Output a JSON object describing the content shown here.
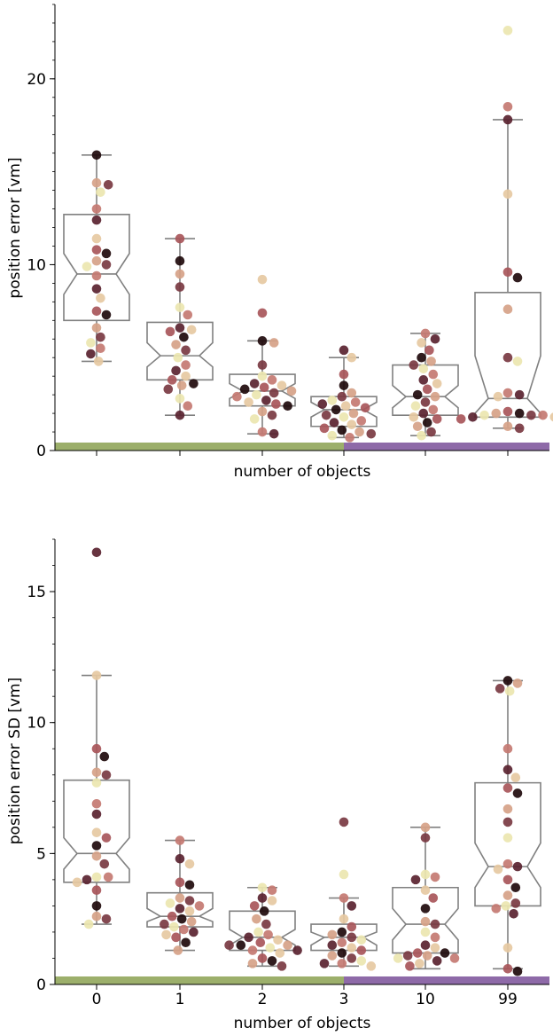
{
  "colors": {
    "box_stroke": "#808080",
    "axis": "#000000",
    "band_left": "#9caf6b",
    "band_right": "#8e6aa8",
    "palette": [
      "#1f0a0c",
      "#5a2330",
      "#7a3a42",
      "#a8565a",
      "#c47a72",
      "#d6a288",
      "#e6c9a2",
      "#ece6b0"
    ]
  },
  "chart_data": [
    {
      "type": "boxplot",
      "notched": true,
      "show_points": true,
      "title": "",
      "xlabel": "number of objects",
      "ylabel": "position error [vm]",
      "ylim": [
        0,
        24
      ],
      "yticks": [
        0,
        10,
        20
      ],
      "ytick_labels": [
        "0",
        "10",
        "20"
      ],
      "categories": [
        "0",
        "1",
        "2",
        "3",
        "10",
        "99"
      ],
      "show_xtick_labels": false,
      "groups": [
        {
          "name": "0",
          "q1": 7.0,
          "median": 9.5,
          "q3": 12.7,
          "ci_low": 8.4,
          "ci_high": 10.6,
          "whisker_low": 4.8,
          "whisker_high": 15.9,
          "points": [
            15.9,
            14.4,
            14.3,
            13.9,
            13.0,
            12.4,
            11.4,
            10.8,
            10.6,
            10.2,
            10.0,
            9.9,
            9.4,
            8.7,
            8.2,
            7.5,
            7.3,
            6.6,
            6.1,
            5.8,
            5.5,
            5.2,
            4.8
          ]
        },
        {
          "name": "1",
          "q1": 3.8,
          "median": 5.1,
          "q3": 6.9,
          "ci_low": 4.5,
          "ci_high": 5.8,
          "whisker_low": 1.9,
          "whisker_high": 11.4,
          "points": [
            11.4,
            10.2,
            9.5,
            8.8,
            7.7,
            7.3,
            6.6,
            6.5,
            6.4,
            6.1,
            5.7,
            5.4,
            5.0,
            4.6,
            4.3,
            4.0,
            3.8,
            3.6,
            3.5,
            3.3,
            2.8,
            2.4,
            1.9
          ]
        },
        {
          "name": "2",
          "q1": 2.4,
          "median": 3.2,
          "q3": 4.1,
          "ci_low": 2.8,
          "ci_high": 3.6,
          "whisker_low": 0.9,
          "whisker_high": 5.9,
          "points": [
            9.2,
            7.4,
            5.9,
            5.8,
            4.6,
            4.0,
            3.8,
            3.6,
            3.5,
            3.4,
            3.3,
            3.2,
            3.1,
            3.0,
            2.9,
            2.7,
            2.6,
            2.5,
            2.4,
            2.1,
            1.9,
            1.7,
            1.0,
            0.9
          ]
        },
        {
          "name": "3",
          "q1": 1.3,
          "median": 2.2,
          "q3": 2.9,
          "ci_low": 1.8,
          "ci_high": 2.6,
          "whisker_low": 0.7,
          "whisker_high": 5.0,
          "points": [
            5.4,
            5.0,
            4.1,
            3.5,
            3.1,
            2.9,
            2.7,
            2.6,
            2.5,
            2.4,
            2.3,
            2.2,
            2.0,
            1.9,
            1.8,
            1.6,
            1.5,
            1.4,
            1.2,
            1.1,
            1.0,
            0.9,
            0.8,
            0.7
          ]
        },
        {
          "name": "10",
          "q1": 1.9,
          "median": 2.9,
          "q3": 4.6,
          "ci_low": 2.3,
          "ci_high": 3.5,
          "whisker_low": 0.8,
          "whisker_high": 6.3,
          "points": [
            6.3,
            6.0,
            5.8,
            5.4,
            5.0,
            4.8,
            4.6,
            4.4,
            4.1,
            3.8,
            3.6,
            3.3,
            3.0,
            2.9,
            2.6,
            2.4,
            2.2,
            2.0,
            1.8,
            1.7,
            1.5,
            1.3,
            1.0,
            0.8
          ]
        },
        {
          "name": "99",
          "q1": 1.8,
          "median": 2.8,
          "q3": 8.5,
          "ci_low": 2.0,
          "ci_high": 5.1,
          "whisker_low": 1.2,
          "whisker_high": 17.8,
          "points": [
            22.6,
            18.5,
            17.8,
            13.8,
            9.6,
            9.3,
            7.6,
            5.0,
            4.8,
            3.1,
            3.0,
            2.9,
            2.1,
            2.0,
            2.0,
            1.9,
            1.9,
            1.9,
            1.8,
            1.8,
            1.7,
            1.7,
            1.3,
            1.2
          ]
        }
      ]
    },
    {
      "type": "boxplot",
      "notched": true,
      "show_points": true,
      "title": "",
      "xlabel": "number of objects",
      "ylabel": "position error SD [vm]",
      "ylim": [
        0,
        17
      ],
      "yticks": [
        0,
        5,
        10,
        15
      ],
      "ytick_labels": [
        "0",
        "5",
        "10",
        "15"
      ],
      "categories": [
        "0",
        "1",
        "2",
        "3",
        "10",
        "99"
      ],
      "show_xtick_labels": true,
      "groups": [
        {
          "name": "0",
          "q1": 3.9,
          "median": 5.0,
          "q3": 7.8,
          "ci_low": 4.4,
          "ci_high": 5.6,
          "whisker_low": 2.3,
          "whisker_high": 11.8,
          "points": [
            16.5,
            11.8,
            9.0,
            8.7,
            8.1,
            8.0,
            7.7,
            6.9,
            6.5,
            5.8,
            5.6,
            5.3,
            4.9,
            4.6,
            4.1,
            4.1,
            4.0,
            3.9,
            3.6,
            3.0,
            2.6,
            2.5,
            2.3
          ]
        },
        {
          "name": "1",
          "q1": 2.2,
          "median": 2.6,
          "q3": 3.5,
          "ci_low": 2.4,
          "ci_high": 2.9,
          "whisker_low": 1.3,
          "whisker_high": 5.5,
          "points": [
            5.5,
            4.8,
            4.6,
            3.9,
            3.8,
            3.3,
            3.2,
            3.1,
            3.0,
            2.9,
            2.8,
            2.6,
            2.5,
            2.4,
            2.3,
            2.2,
            2.1,
            2.0,
            1.9,
            1.8,
            1.6,
            1.3
          ]
        },
        {
          "name": "2",
          "q1": 1.3,
          "median": 1.8,
          "q3": 2.8,
          "ci_low": 1.5,
          "ci_high": 2.1,
          "whisker_low": 0.7,
          "whisker_high": 3.7,
          "points": [
            3.7,
            3.6,
            3.3,
            3.2,
            3.0,
            2.8,
            2.5,
            2.3,
            2.0,
            1.9,
            1.8,
            1.7,
            1.6,
            1.5,
            1.5,
            1.5,
            1.4,
            1.3,
            1.3,
            1.2,
            1.0,
            0.9,
            0.8,
            0.7
          ]
        },
        {
          "name": "3",
          "q1": 1.3,
          "median": 1.8,
          "q3": 2.3,
          "ci_low": 1.5,
          "ci_high": 2.0,
          "whisker_low": 0.7,
          "whisker_high": 3.3,
          "points": [
            6.2,
            4.2,
            3.3,
            3.0,
            2.5,
            2.2,
            2.0,
            1.9,
            1.8,
            1.7,
            1.6,
            1.5,
            1.4,
            1.3,
            1.2,
            1.1,
            1.0,
            0.9,
            0.8,
            0.8,
            0.7
          ]
        },
        {
          "name": "10",
          "q1": 1.2,
          "median": 2.3,
          "q3": 3.7,
          "ci_low": 1.7,
          "ci_high": 2.9,
          "whisker_low": 0.6,
          "whisker_high": 6.0,
          "points": [
            6.0,
            5.6,
            4.2,
            4.1,
            4.0,
            3.6,
            3.3,
            2.9,
            2.4,
            2.3,
            2.0,
            1.8,
            1.5,
            1.4,
            1.2,
            1.2,
            1.1,
            1.1,
            1.0,
            1.0,
            0.9,
            0.8,
            0.7
          ]
        },
        {
          "name": "99",
          "q1": 3.0,
          "median": 4.5,
          "q3": 7.7,
          "ci_low": 3.7,
          "ci_high": 5.4,
          "whisker_low": 0.6,
          "whisker_high": 11.6,
          "points": [
            11.6,
            11.5,
            11.3,
            11.2,
            9.0,
            8.2,
            7.9,
            7.5,
            7.3,
            6.7,
            6.2,
            5.6,
            4.6,
            4.5,
            4.4,
            4.0,
            3.7,
            3.4,
            3.1,
            3.0,
            2.9,
            2.7,
            1.4,
            0.6,
            0.5
          ]
        }
      ]
    }
  ]
}
